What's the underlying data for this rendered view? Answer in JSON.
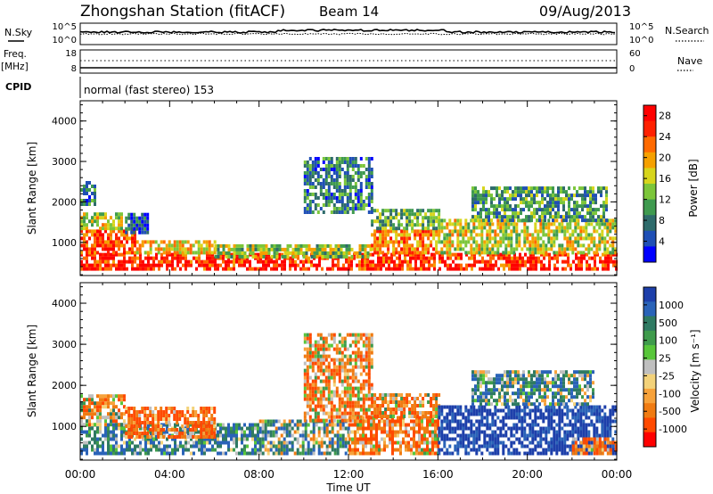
{
  "header": {
    "station": "Zhongshan Station (fitACF)",
    "beam": "Beam 14",
    "date": "09/Aug/2013"
  },
  "top_panels": {
    "noise": {
      "left_label": "N.Sky",
      "left_ticks": [
        "10^5",
        "10^0"
      ],
      "right_label": "N.Search",
      "right_ticks": [
        "10^5",
        "10^0"
      ]
    },
    "freq": {
      "left_label_line1": "Freq.",
      "left_label_line2": "[MHz]",
      "left_ticks": [
        "18",
        "8"
      ],
      "right_label": "Nave",
      "right_ticks": [
        "60",
        "0"
      ]
    },
    "cpid": {
      "label": "CPID",
      "value": "normal (fast stereo) 153"
    }
  },
  "chart_data": [
    {
      "type": "heatmap",
      "title": "",
      "xlabel": "Time UT",
      "ylabel": "Slant Range [km]",
      "x_ticks": [
        "00:00",
        "04:00",
        "08:00",
        "12:00",
        "16:00",
        "20:00",
        "00:00"
      ],
      "xlim": [
        0,
        24
      ],
      "ylim": [
        180,
        4500
      ],
      "y_ticks": [
        1000,
        2000,
        3000,
        4000
      ],
      "colorbar": {
        "label": "Power [dB]",
        "ticks": [
          4,
          8,
          12,
          16,
          20,
          24,
          28
        ],
        "range": [
          0,
          30
        ],
        "colors": [
          "#0000ff",
          "#1f4fb5",
          "#2e6b6b",
          "#3f9a4f",
          "#7cc63a",
          "#d7d51c",
          "#f5a000",
          "#ff6a00",
          "#ff2000",
          "#ff0000"
        ]
      },
      "regions": [
        {
          "t0": 0.0,
          "t1": 24.0,
          "r0": 300,
          "r1": 700,
          "level": 26
        },
        {
          "t0": 0.0,
          "t1": 2.5,
          "r0": 700,
          "r1": 1300,
          "level": 24
        },
        {
          "t0": 0.0,
          "t1": 1.8,
          "r0": 1300,
          "r1": 1700,
          "level": 16
        },
        {
          "t0": 2.5,
          "t1": 6.0,
          "r0": 700,
          "r1": 1000,
          "level": 18
        },
        {
          "t0": 6.0,
          "t1": 13.0,
          "r0": 600,
          "r1": 900,
          "level": 14
        },
        {
          "t0": 13.0,
          "t1": 16.0,
          "r0": 700,
          "r1": 1300,
          "level": 22
        },
        {
          "t0": 13.0,
          "t1": 16.0,
          "r0": 1300,
          "r1": 1800,
          "level": 12
        },
        {
          "t0": 16.0,
          "t1": 24.0,
          "r0": 700,
          "r1": 1500,
          "level": 16
        },
        {
          "t0": 17.5,
          "t1": 23.5,
          "r0": 1500,
          "r1": 2300,
          "level": 10
        },
        {
          "t0": 10.0,
          "t1": 13.0,
          "r0": 1700,
          "r1": 3100,
          "level": 8
        },
        {
          "t0": 0.0,
          "t1": 0.6,
          "r0": 1900,
          "r1": 2500,
          "level": 8
        },
        {
          "t0": 2.0,
          "t1": 3.0,
          "r0": 1200,
          "r1": 1700,
          "level": 6
        }
      ]
    },
    {
      "type": "heatmap",
      "title": "",
      "xlabel": "Time UT",
      "ylabel": "Slant Range [km]",
      "x_ticks": [
        "00:00",
        "04:00",
        "08:00",
        "12:00",
        "16:00",
        "20:00",
        "00:00"
      ],
      "xlim": [
        0,
        24
      ],
      "ylim": [
        180,
        4500
      ],
      "y_ticks": [
        1000,
        2000,
        3000,
        4000
      ],
      "colorbar": {
        "label": "Velocity [m s⁻¹]",
        "ticks": [
          1000,
          500,
          100,
          25,
          -25,
          -100,
          -500,
          -1000
        ],
        "colors": [
          "#1d3faa",
          "#2a63b8",
          "#2f7a62",
          "#3f9b4c",
          "#58c63a",
          "#bfbfbf",
          "#f3d27a",
          "#f7a23b",
          "#f07b12",
          "#ff4a00",
          "#ff0000"
        ]
      },
      "regions": [
        {
          "t0": 0.0,
          "t1": 8.0,
          "r0": 300,
          "r1": 1000,
          "level": 200
        },
        {
          "t0": 0.0,
          "t1": 2.0,
          "r0": 1000,
          "r1": 1700,
          "level": -120
        },
        {
          "t0": 2.0,
          "t1": 6.0,
          "r0": 700,
          "r1": 1400,
          "level": -250
        },
        {
          "t0": 8.0,
          "t1": 12.0,
          "r0": 300,
          "r1": 1100,
          "level": 120
        },
        {
          "t0": 10.0,
          "t1": 13.0,
          "r0": 1100,
          "r1": 3200,
          "level": -150
        },
        {
          "t0": 12.0,
          "t1": 16.0,
          "r0": 300,
          "r1": 1200,
          "level": -180
        },
        {
          "t0": 13.0,
          "t1": 16.0,
          "r0": 1200,
          "r1": 1800,
          "level": -120
        },
        {
          "t0": 16.0,
          "t1": 24.0,
          "r0": 300,
          "r1": 1500,
          "level": 600
        },
        {
          "t0": 17.5,
          "t1": 23.0,
          "r0": 1500,
          "r1": 2300,
          "level": 150
        },
        {
          "t0": 22.0,
          "t1": 24.0,
          "r0": 300,
          "r1": 700,
          "level": -200
        }
      ]
    }
  ]
}
